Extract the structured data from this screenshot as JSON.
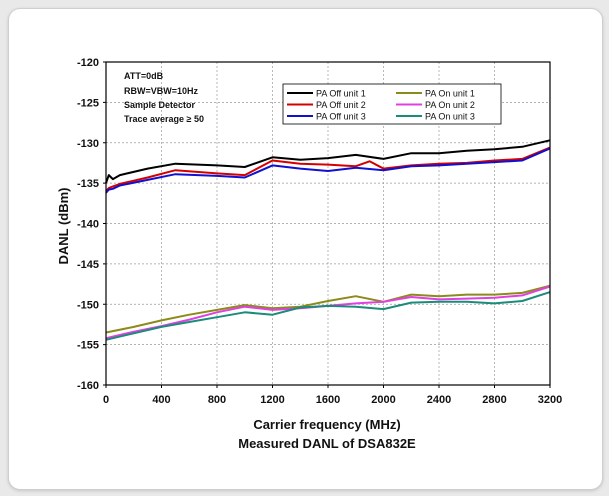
{
  "chart_data": {
    "type": "line",
    "title": "",
    "caption": "Measured DANL of DSA832E",
    "xlabel": "Carrier frequency (MHz)",
    "ylabel": "DANL (dBm)",
    "xlim": [
      0,
      3200
    ],
    "ylim": [
      -160,
      -120
    ],
    "xticks": [
      0,
      400,
      800,
      1200,
      1600,
      2000,
      2400,
      2800,
      3200
    ],
    "yticks": [
      -120,
      -125,
      -130,
      -135,
      -140,
      -145,
      -150,
      -155,
      -160
    ],
    "grid": true,
    "legend_position": "top-right",
    "annotations": [
      "ATT=0dB",
      "RBW=VBW=10Hz",
      "Sample Detector",
      "Trace average ≥ 50"
    ],
    "series": [
      {
        "name": "PA Off unit 1",
        "color": "#000000",
        "x": [
          0,
          20,
          50,
          100,
          300,
          500,
          800,
          1000,
          1200,
          1400,
          1600,
          1800,
          2000,
          2200,
          2400,
          2600,
          2800,
          3000,
          3200
        ],
        "y": [
          -135.0,
          -134.0,
          -134.5,
          -134.0,
          -133.2,
          -132.6,
          -132.8,
          -133.0,
          -131.8,
          -132.1,
          -131.9,
          -131.5,
          -132.0,
          -131.3,
          -131.3,
          -131.0,
          -130.8,
          -130.5,
          -129.7
        ]
      },
      {
        "name": "PA Off unit 2",
        "color": "#d40000",
        "x": [
          0,
          20,
          50,
          100,
          300,
          500,
          800,
          1000,
          1200,
          1400,
          1600,
          1800,
          1900,
          2000,
          2200,
          2400,
          2600,
          2800,
          3000,
          3200
        ],
        "y": [
          -136.0,
          -135.6,
          -135.4,
          -135.1,
          -134.3,
          -133.4,
          -133.8,
          -134.0,
          -132.2,
          -132.6,
          -132.7,
          -132.9,
          -132.3,
          -133.2,
          -132.8,
          -132.6,
          -132.5,
          -132.2,
          -132.0,
          -130.6
        ]
      },
      {
        "name": "PA Off unit 3",
        "color": "#1010d0",
        "x": [
          0,
          20,
          50,
          100,
          300,
          500,
          800,
          1000,
          1200,
          1400,
          1600,
          1800,
          2000,
          2200,
          2400,
          2600,
          2800,
          3000,
          3200
        ],
        "y": [
          -136.2,
          -135.8,
          -135.7,
          -135.3,
          -134.6,
          -133.9,
          -134.1,
          -134.3,
          -132.8,
          -133.2,
          -133.5,
          -133.1,
          -133.4,
          -132.9,
          -132.8,
          -132.6,
          -132.4,
          -132.2,
          -130.7
        ]
      },
      {
        "name": "PA On unit 1",
        "color": "#8b8b1a",
        "x": [
          0,
          200,
          400,
          600,
          800,
          1000,
          1200,
          1400,
          1600,
          1800,
          2000,
          2200,
          2400,
          2600,
          2800,
          3000,
          3200
        ],
        "y": [
          -153.5,
          -152.8,
          -152.0,
          -151.3,
          -150.7,
          -150.1,
          -150.5,
          -150.3,
          -149.6,
          -149.0,
          -149.7,
          -148.8,
          -149.0,
          -148.8,
          -148.8,
          -148.6,
          -147.7
        ]
      },
      {
        "name": "PA On unit 2",
        "color": "#e040e0",
        "x": [
          0,
          200,
          400,
          600,
          800,
          1000,
          1200,
          1400,
          1600,
          1800,
          2000,
          2200,
          2400,
          2600,
          2800,
          3000,
          3200
        ],
        "y": [
          -154.2,
          -153.4,
          -152.7,
          -151.9,
          -151.0,
          -150.3,
          -150.7,
          -150.5,
          -150.2,
          -149.9,
          -149.7,
          -149.1,
          -149.4,
          -149.3,
          -149.2,
          -148.9,
          -147.8
        ]
      },
      {
        "name": "PA On unit 3",
        "color": "#1a8c7a",
        "x": [
          0,
          200,
          400,
          600,
          800,
          1000,
          1200,
          1400,
          1600,
          1800,
          2000,
          2200,
          2400,
          2600,
          2800,
          3000,
          3200
        ],
        "y": [
          -154.4,
          -153.6,
          -152.8,
          -152.2,
          -151.6,
          -151.0,
          -151.3,
          -150.4,
          -150.2,
          -150.3,
          -150.6,
          -149.8,
          -149.7,
          -149.7,
          -149.9,
          -149.6,
          -148.5
        ]
      }
    ]
  }
}
